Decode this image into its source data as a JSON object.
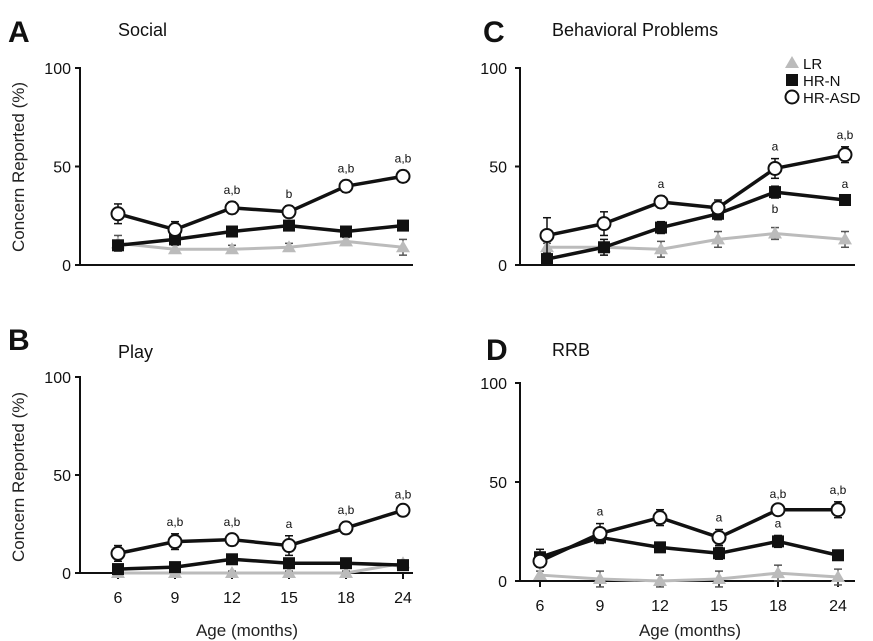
{
  "figure": {
    "y_axis_label": "Concern Reported (%)",
    "x_axis_label": "Age (months)"
  },
  "chart_data": [
    {
      "type": "line",
      "panel_letter": "A",
      "title": "Social",
      "x": [
        6,
        9,
        12,
        15,
        18,
        24
      ],
      "ylim": [
        0,
        100
      ],
      "yticks": [
        0,
        50,
        100
      ],
      "series": [
        {
          "name": "LR",
          "values": [
            11,
            8,
            8,
            9,
            12,
            9
          ],
          "errors": [
            4,
            2,
            2,
            2,
            2,
            4
          ]
        },
        {
          "name": "HR-N",
          "values": [
            10,
            13,
            17,
            20,
            17,
            20
          ],
          "errors": [
            2,
            2,
            2,
            2,
            2,
            2
          ]
        },
        {
          "name": "HR-ASD",
          "values": [
            26,
            18,
            29,
            27,
            40,
            45
          ],
          "errors": [
            5,
            4,
            3,
            3,
            3,
            3
          ]
        }
      ],
      "annotations": [
        "",
        "",
        "a,b",
        "b",
        "a,b",
        "a,b"
      ]
    },
    {
      "type": "line",
      "panel_letter": "C",
      "title": "Behavioral Problems",
      "x": [
        6,
        9,
        12,
        15,
        18,
        24
      ],
      "ylim": [
        0,
        100
      ],
      "yticks": [
        0,
        50,
        100
      ],
      "series": [
        {
          "name": "LR",
          "values": [
            9,
            9,
            8,
            13,
            16,
            13
          ],
          "errors": [
            2,
            2,
            4,
            4,
            3,
            4
          ]
        },
        {
          "name": "HR-N",
          "values": [
            3,
            9,
            19,
            26,
            37,
            33
          ],
          "errors": [
            1,
            4,
            3,
            3,
            3,
            2
          ]
        },
        {
          "name": "HR-ASD",
          "values": [
            15,
            21,
            32,
            29,
            49,
            56
          ],
          "errors": [
            9,
            6,
            3,
            4,
            5,
            4
          ]
        }
      ],
      "annotations": [
        "",
        "",
        "a",
        "",
        "a",
        "a,b"
      ],
      "annotations_lower": [
        "",
        "",
        "",
        "",
        "b",
        "a"
      ],
      "legend_position": "top-right"
    },
    {
      "type": "line",
      "panel_letter": "B",
      "title": "Play",
      "x": [
        6,
        9,
        12,
        15,
        18,
        24
      ],
      "ylim": [
        0,
        100
      ],
      "yticks": [
        0,
        50,
        100
      ],
      "series": [
        {
          "name": "LR",
          "values": [
            0,
            0,
            0,
            0,
            0,
            5
          ],
          "errors": [
            1,
            1,
            1,
            1,
            1,
            1
          ]
        },
        {
          "name": "HR-N",
          "values": [
            2,
            3,
            7,
            5,
            5,
            4
          ],
          "errors": [
            1,
            1,
            2,
            2,
            1,
            1
          ]
        },
        {
          "name": "HR-ASD",
          "values": [
            10,
            16,
            17,
            14,
            23,
            32
          ],
          "errors": [
            4,
            4,
            3,
            5,
            3,
            2
          ]
        }
      ],
      "annotations": [
        "",
        "a,b",
        "a,b",
        "a",
        "a,b",
        "a,b"
      ]
    },
    {
      "type": "line",
      "panel_letter": "D",
      "title": "RRB",
      "x": [
        6,
        9,
        12,
        15,
        18,
        24
      ],
      "ylim": [
        0,
        100
      ],
      "yticks": [
        0,
        50,
        100
      ],
      "series": [
        {
          "name": "LR",
          "values": [
            3,
            1,
            0,
            1,
            4,
            2
          ],
          "errors": [
            2,
            4,
            3,
            4,
            4,
            4
          ]
        },
        {
          "name": "HR-N",
          "values": [
            12,
            22,
            17,
            14,
            20,
            13
          ],
          "errors": [
            4,
            3,
            2,
            3,
            3,
            2
          ]
        },
        {
          "name": "HR-ASD",
          "values": [
            10,
            24,
            32,
            22,
            36,
            36
          ],
          "errors": [
            3,
            5,
            4,
            4,
            2,
            4
          ]
        }
      ],
      "annotations": [
        "",
        "a",
        "",
        "a",
        "a,b",
        "a,b"
      ],
      "annotations_lower": [
        "",
        "",
        "",
        "",
        "a",
        ""
      ]
    }
  ]
}
